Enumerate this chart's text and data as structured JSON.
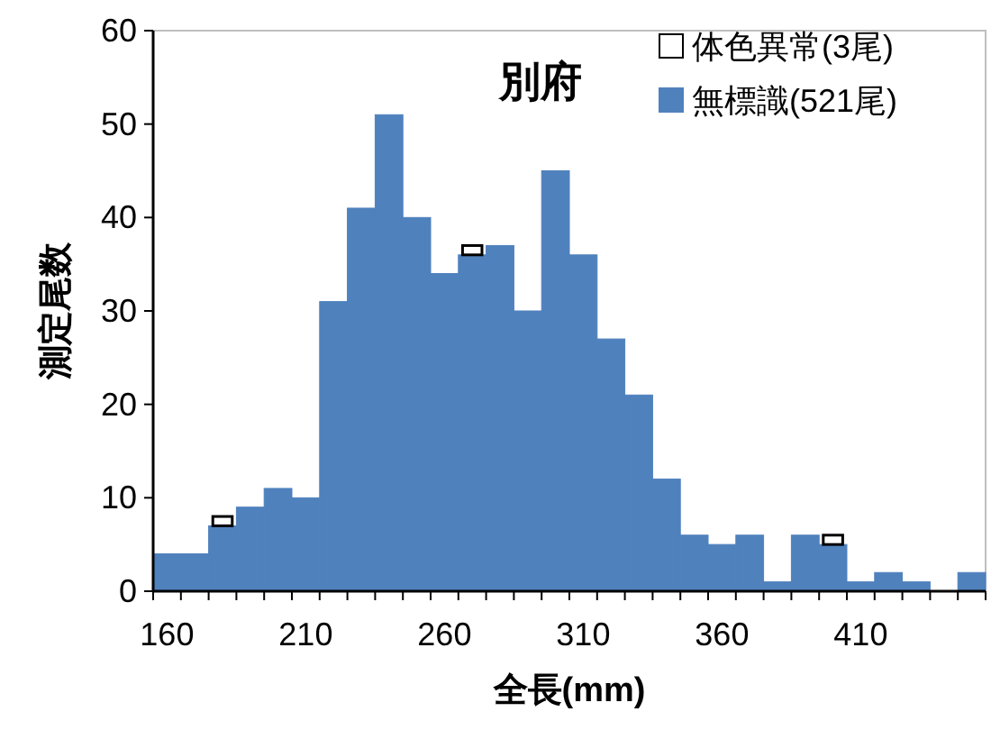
{
  "chart_data": {
    "type": "bar",
    "title": "別府",
    "xlabel": "全長(mm)",
    "ylabel": "測定尾数",
    "categories": [
      "160",
      null,
      null,
      null,
      null,
      "210",
      null,
      null,
      null,
      null,
      "260",
      null,
      null,
      null,
      null,
      "310",
      null,
      null,
      null,
      null,
      "360",
      null,
      null,
      null,
      null,
      "410",
      null,
      null,
      null,
      null
    ],
    "series": [
      {
        "name": "無標識(521尾)",
        "color": "#4f81bd",
        "values": [
          4,
          4,
          7,
          9,
          11,
          10,
          31,
          41,
          51,
          40,
          34,
          36,
          37,
          30,
          45,
          36,
          27,
          21,
          12,
          6,
          5,
          6,
          1,
          6,
          5,
          1,
          2,
          1,
          0,
          2
        ]
      },
      {
        "name": "体色異常(3尾)",
        "color": "#ffffff",
        "values": [
          null,
          null,
          1,
          null,
          null,
          null,
          null,
          null,
          null,
          null,
          null,
          1,
          null,
          null,
          null,
          null,
          null,
          null,
          null,
          null,
          null,
          null,
          null,
          null,
          1,
          null,
          null,
          null,
          null,
          null
        ]
      }
    ],
    "stacked": true,
    "ylim": [
      0,
      60
    ],
    "yticks": [
      0,
      10,
      20,
      30,
      40,
      50,
      60
    ],
    "legend": "top right"
  }
}
